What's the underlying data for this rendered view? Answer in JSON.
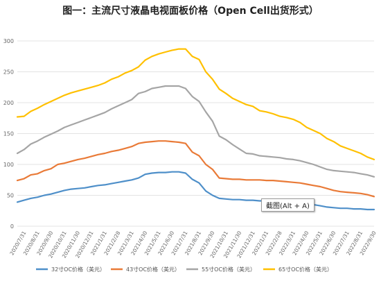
{
  "title": "图一：主流尺寸液晶电视面板价格（Open Cell出货形式）",
  "tooltip": "截图(Alt + A)",
  "chart_data": {
    "type": "line",
    "title": "图一：主流尺寸液晶电视面板价格（Open Cell出货形式）",
    "xlabel": "",
    "ylabel": "",
    "ylim": [
      0,
      300
    ],
    "yticks": [
      0,
      50,
      100,
      150,
      200,
      250,
      300
    ],
    "grid": true,
    "legend_position": "bottom",
    "categories": [
      "2020/7/31",
      "2020/8/31",
      "2020/9/30",
      "2020/10/31",
      "2020/11/30",
      "2020/12/31",
      "2021/1/31",
      "2021/2/28",
      "2021/3/31",
      "2021/4/30",
      "2021/5/31",
      "2021/6/30",
      "2021/7/31",
      "2021/8/31",
      "2021/9/30",
      "2021/10/31",
      "2021/11/30",
      "2021/12/31",
      "2022/1/31",
      "2022/2/28",
      "2022/3/31",
      "2022/4/30",
      "2022/5/31",
      "2022/6/30",
      "2022/7/31",
      "2022/8/31",
      "2022/9/30"
    ],
    "x": [
      "2020/7/15",
      "2020/7/31",
      "2020/8/15",
      "2020/8/31",
      "2020/9/15",
      "2020/9/30",
      "2020/10/15",
      "2020/10/31",
      "2020/11/15",
      "2020/11/30",
      "2020/12/15",
      "2020/12/31",
      "2021/1/15",
      "2021/1/31",
      "2021/2/15",
      "2021/2/28",
      "2021/3/15",
      "2021/3/31",
      "2021/4/15",
      "2021/4/30",
      "2021/5/15",
      "2021/5/31",
      "2021/6/15",
      "2021/6/30",
      "2021/7/15",
      "2021/7/31",
      "2021/8/15",
      "2021/8/31",
      "2021/9/15",
      "2021/9/30",
      "2021/10/15",
      "2021/10/31",
      "2021/11/15",
      "2021/11/30",
      "2021/12/15",
      "2021/12/31",
      "2022/1/15",
      "2022/1/31",
      "2022/2/15",
      "2022/2/28",
      "2022/3/15",
      "2022/3/31",
      "2022/4/15",
      "2022/4/30",
      "2022/5/15",
      "2022/5/31",
      "2022/6/15",
      "2022/6/30",
      "2022/7/15",
      "2022/7/31",
      "2022/8/15",
      "2022/8/31",
      "2022/9/15",
      "2022/9/30"
    ],
    "series": [
      {
        "name": "32寸OC价格（美元）",
        "color": "#4E8FC9",
        "values": [
          39,
          42,
          45,
          47,
          50,
          52,
          55,
          58,
          60,
          61,
          62,
          64,
          66,
          67,
          69,
          71,
          73,
          75,
          78,
          84,
          86,
          87,
          87,
          88,
          88,
          86,
          76,
          70,
          57,
          50,
          45,
          44,
          43,
          43,
          42,
          42,
          41,
          41,
          40,
          40,
          39,
          38,
          37,
          36,
          35,
          33,
          31,
          30,
          29,
          29,
          28,
          28,
          27,
          27
        ]
      },
      {
        "name": "43寸OC价格（美元）",
        "color": "#E97A37",
        "values": [
          74,
          77,
          83,
          85,
          90,
          93,
          100,
          102,
          105,
          108,
          110,
          113,
          116,
          118,
          121,
          123,
          126,
          129,
          134,
          136,
          137,
          138,
          138,
          137,
          136,
          134,
          120,
          114,
          100,
          92,
          78,
          77,
          76,
          76,
          75,
          75,
          75,
          74,
          74,
          73,
          72,
          71,
          70,
          68,
          66,
          64,
          61,
          58,
          56,
          55,
          54,
          53,
          51,
          48
        ]
      },
      {
        "name": "55寸OC价格（美元）",
        "color": "#A5A5A5",
        "values": [
          118,
          124,
          133,
          138,
          144,
          149,
          154,
          160,
          164,
          168,
          172,
          176,
          180,
          184,
          190,
          195,
          200,
          205,
          215,
          218,
          223,
          225,
          227,
          227,
          227,
          223,
          210,
          202,
          185,
          170,
          146,
          140,
          132,
          125,
          118,
          117,
          114,
          113,
          112,
          111,
          109,
          108,
          106,
          103,
          100,
          96,
          92,
          90,
          89,
          88,
          87,
          85,
          83,
          80
        ]
      },
      {
        "name": "65寸OC价格（美元）",
        "color": "#FFC000",
        "values": [
          177,
          178,
          186,
          191,
          197,
          202,
          207,
          212,
          216,
          219,
          222,
          225,
          228,
          232,
          238,
          242,
          248,
          252,
          258,
          269,
          275,
          279,
          282,
          285,
          287,
          287,
          275,
          270,
          250,
          238,
          222,
          215,
          207,
          202,
          197,
          194,
          187,
          185,
          182,
          178,
          176,
          173,
          168,
          160,
          155,
          150,
          142,
          137,
          130,
          126,
          122,
          118,
          112,
          108
        ]
      }
    ]
  }
}
